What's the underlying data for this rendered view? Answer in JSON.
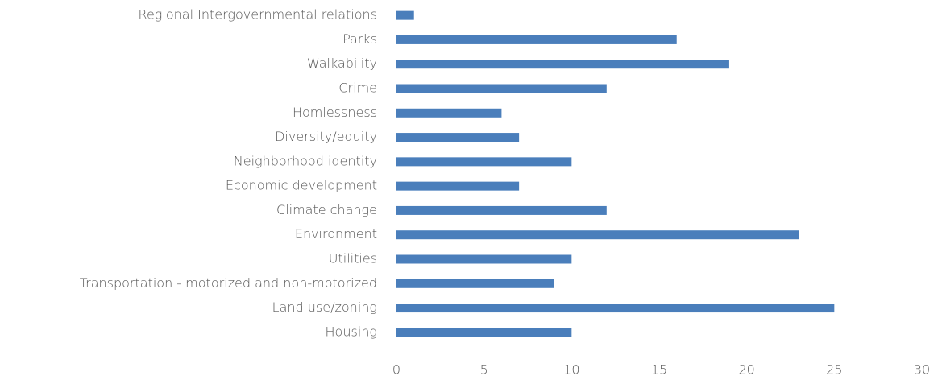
{
  "chart_data": {
    "type": "bar",
    "orientation": "horizontal",
    "categories": [
      "Regional Intergovernmental relations",
      "Parks",
      "Walkability",
      "Crime",
      "Homlessness",
      "Diversity/equity",
      "Neighborhood identity",
      "Economic development",
      "Climate change",
      "Environment",
      "Utilities",
      "Transportation - motorized and non-motorized",
      "Land use/zoning",
      "Housing"
    ],
    "values": [
      1,
      16,
      19,
      12,
      6,
      7,
      10,
      7,
      12,
      23,
      10,
      9,
      25,
      10
    ],
    "color": "#4a7ebb",
    "xlim": [
      0,
      30
    ],
    "xticks": [
      0,
      5,
      10,
      15,
      20,
      25,
      30
    ],
    "grid": false
  }
}
